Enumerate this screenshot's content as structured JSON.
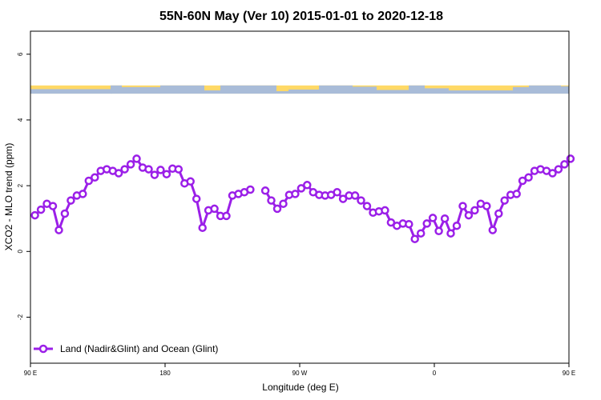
{
  "chart_data": {
    "type": "line",
    "title": "55N-60N May (Ver 10)   2015-01-01 to 2020-12-18",
    "xlabel": "Longitude (deg E)",
    "ylabel": "XCO2 - MLO trend (ppm)",
    "xlim": [
      90,
      450
    ],
    "ylim": [
      -3.4,
      6.7
    ],
    "x_ticks": [
      {
        "value": 90,
        "label": "90 E"
      },
      {
        "value": 180,
        "label": "180"
      },
      {
        "value": 270,
        "label": "90 W"
      },
      {
        "value": 360,
        "label": "0"
      },
      {
        "value": 450,
        "label": "90 E"
      },
      {
        "value": 540,
        "label": "180"
      }
    ],
    "y_ticks": [
      {
        "value": -2,
        "label": "-2"
      },
      {
        "value": 0,
        "label": "0"
      },
      {
        "value": 2,
        "label": "2"
      },
      {
        "value": 4,
        "label": "4"
      },
      {
        "value": 6,
        "label": "6"
      }
    ],
    "grid": false,
    "legend_position": "bottom-left",
    "land_ocean_strip": {
      "y_range": [
        4.8,
        5.05
      ],
      "land_color": "#FFD966",
      "ocean_color": "#A9BCD8"
    },
    "series": [
      {
        "name": "Land (Nadir&Glint) and Ocean (Glint)",
        "color": "#9B1FE8",
        "segments": [
          [
            [
              93,
              1.1
            ],
            [
              97,
              1.27
            ],
            [
              101,
              1.45
            ],
            [
              105,
              1.38
            ],
            [
              109,
              0.65
            ],
            [
              113,
              1.15
            ],
            [
              117,
              1.55
            ],
            [
              121,
              1.7
            ],
            [
              125,
              1.75
            ],
            [
              129,
              2.15
            ],
            [
              133,
              2.25
            ],
            [
              137,
              2.45
            ],
            [
              141,
              2.5
            ],
            [
              145,
              2.45
            ],
            [
              149,
              2.38
            ],
            [
              153,
              2.5
            ],
            [
              157,
              2.65
            ],
            [
              161,
              2.82
            ],
            [
              165,
              2.55
            ],
            [
              169,
              2.5
            ],
            [
              173,
              2.33
            ],
            [
              177,
              2.48
            ],
            [
              181,
              2.35
            ],
            [
              185,
              2.52
            ],
            [
              189,
              2.5
            ],
            [
              193,
              2.07
            ],
            [
              197,
              2.13
            ],
            [
              201,
              1.6
            ],
            [
              205,
              0.72
            ],
            [
              209,
              1.25
            ],
            [
              213,
              1.3
            ],
            [
              217,
              1.08
            ],
            [
              221,
              1.08
            ],
            [
              225,
              1.7
            ],
            [
              229,
              1.75
            ],
            [
              233,
              1.8
            ],
            [
              237,
              1.88
            ]
          ],
          [
            [
              247,
              1.85
            ],
            [
              251,
              1.55
            ],
            [
              255,
              1.3
            ],
            [
              259,
              1.45
            ],
            [
              263,
              1.72
            ],
            [
              267,
              1.75
            ],
            [
              271,
              1.92
            ],
            [
              275,
              2.02
            ],
            [
              279,
              1.8
            ],
            [
              283,
              1.72
            ],
            [
              287,
              1.7
            ],
            [
              291,
              1.72
            ],
            [
              295,
              1.8
            ],
            [
              299,
              1.6
            ],
            [
              303,
              1.7
            ],
            [
              307,
              1.7
            ],
            [
              311,
              1.55
            ],
            [
              315,
              1.38
            ],
            [
              319,
              1.18
            ],
            [
              323,
              1.22
            ],
            [
              327,
              1.25
            ],
            [
              331,
              0.88
            ],
            [
              335,
              0.78
            ],
            [
              339,
              0.85
            ],
            [
              343,
              0.83
            ],
            [
              347,
              0.38
            ],
            [
              351,
              0.55
            ],
            [
              355,
              0.85
            ],
            [
              359,
              1.02
            ],
            [
              363,
              0.62
            ],
            [
              367,
              1.0
            ],
            [
              371,
              0.55
            ],
            [
              375,
              0.78
            ],
            [
              379,
              1.38
            ],
            [
              383,
              1.1
            ],
            [
              387,
              1.25
            ],
            [
              391,
              1.45
            ],
            [
              395,
              1.38
            ],
            [
              399,
              0.65
            ],
            [
              403,
              1.15
            ],
            [
              407,
              1.55
            ],
            [
              411,
              1.72
            ],
            [
              415,
              1.75
            ],
            [
              419,
              2.15
            ],
            [
              423,
              2.25
            ],
            [
              427,
              2.45
            ],
            [
              431,
              2.5
            ],
            [
              435,
              2.45
            ],
            [
              439,
              2.38
            ],
            [
              443,
              2.5
            ],
            [
              447,
              2.65
            ],
            [
              451,
              2.82
            ]
          ]
        ]
      }
    ]
  }
}
